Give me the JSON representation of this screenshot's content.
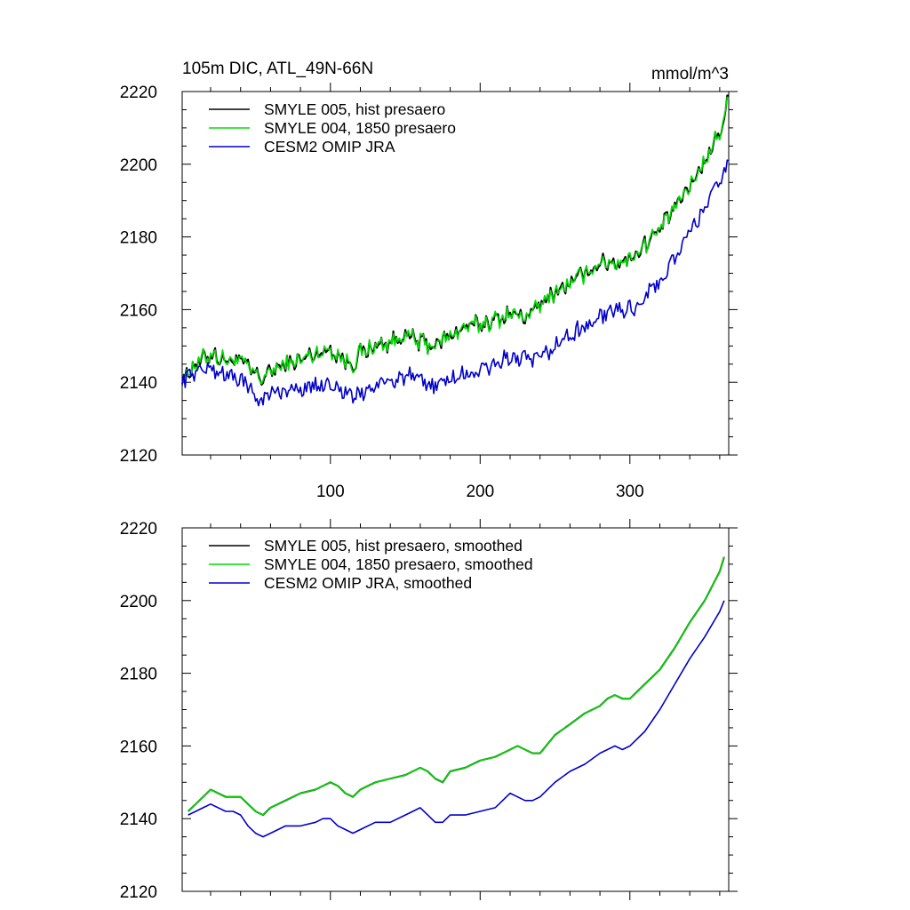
{
  "chart_data": [
    {
      "type": "line",
      "title": "105m DIC, ATL_49N-66N",
      "units": "mmol/m^3",
      "xlabel": "",
      "ylabel": "",
      "xlim": [
        1,
        366
      ],
      "ylim": [
        2120,
        2220
      ],
      "xticks": [
        100,
        200,
        300
      ],
      "xtick_labels": [
        "100",
        "200",
        "300"
      ],
      "yticks": [
        2120,
        2140,
        2160,
        2180,
        2200,
        2220
      ],
      "ytick_labels": [
        "2120",
        "2140",
        "2160",
        "2180",
        "2200",
        "2220"
      ],
      "legend_position": "top-left",
      "noise": true,
      "series": [
        {
          "name": "SMYLE 005, hist presaero",
          "color": "#000000",
          "x": [
            1,
            10,
            20,
            30,
            40,
            50,
            55,
            60,
            70,
            80,
            90,
            100,
            110,
            115,
            120,
            130,
            140,
            150,
            160,
            170,
            180,
            190,
            200,
            210,
            220,
            230,
            240,
            250,
            260,
            270,
            280,
            290,
            300,
            310,
            320,
            330,
            340,
            350,
            360,
            363,
            366
          ],
          "y": [
            2141,
            2145,
            2148,
            2146,
            2146,
            2142,
            2141,
            2143,
            2145,
            2146,
            2148,
            2149,
            2146,
            2145,
            2148,
            2150,
            2151,
            2153,
            2151,
            2150,
            2153,
            2155,
            2156,
            2157,
            2159,
            2158,
            2161,
            2165,
            2167,
            2170,
            2173,
            2173,
            2174,
            2178,
            2182,
            2188,
            2194,
            2201,
            2209,
            2213,
            2218
          ]
        },
        {
          "name": "SMYLE 004, 1850 presaero",
          "color": "#00dd00",
          "x": [
            1,
            10,
            20,
            30,
            40,
            50,
            55,
            60,
            70,
            80,
            90,
            100,
            110,
            115,
            120,
            130,
            140,
            150,
            160,
            170,
            180,
            190,
            200,
            210,
            220,
            230,
            240,
            250,
            260,
            270,
            280,
            290,
            300,
            310,
            320,
            330,
            340,
            350,
            360,
            363,
            366
          ],
          "y": [
            2141,
            2145,
            2148,
            2146,
            2146,
            2142,
            2141,
            2143,
            2145,
            2146,
            2148,
            2149,
            2146,
            2145,
            2148,
            2150,
            2151,
            2153,
            2151,
            2150,
            2153,
            2155,
            2156,
            2157,
            2159,
            2158,
            2161,
            2165,
            2167,
            2170,
            2173,
            2173,
            2174,
            2178,
            2182,
            2188,
            2194,
            2201,
            2209,
            2213,
            2218
          ]
        },
        {
          "name": "CESM2 OMIP JRA",
          "color": "#0000cc",
          "x": [
            1,
            10,
            20,
            30,
            40,
            50,
            55,
            60,
            70,
            80,
            90,
            100,
            110,
            115,
            120,
            130,
            140,
            150,
            160,
            170,
            180,
            190,
            200,
            210,
            220,
            230,
            240,
            250,
            260,
            270,
            280,
            290,
            300,
            310,
            320,
            330,
            340,
            350,
            360,
            363,
            366
          ],
          "y": [
            2141,
            2143,
            2144,
            2142,
            2141,
            2136,
            2135,
            2137,
            2138,
            2138,
            2139,
            2140,
            2137,
            2136,
            2137,
            2139,
            2140,
            2142,
            2140,
            2139,
            2141,
            2142,
            2143,
            2145,
            2147,
            2146,
            2146,
            2150,
            2153,
            2155,
            2158,
            2160,
            2160,
            2163,
            2168,
            2174,
            2181,
            2188,
            2195,
            2198,
            2201
          ]
        }
      ]
    },
    {
      "type": "line",
      "title": "",
      "units": "",
      "xlabel": "",
      "ylabel": "",
      "xlim": [
        1,
        366
      ],
      "ylim": [
        2120,
        2220
      ],
      "xticks": [
        100,
        200,
        300
      ],
      "xtick_labels": [],
      "yticks": [
        2120,
        2140,
        2160,
        2180,
        2200,
        2220
      ],
      "ytick_labels": [
        "2120",
        "2140",
        "2160",
        "2180",
        "2200",
        "2220"
      ],
      "legend_position": "top-left",
      "noise": false,
      "series": [
        {
          "name": "SMYLE 005, hist presaero, smoothed",
          "color": "#000000",
          "x": [
            5,
            10,
            15,
            20,
            30,
            35,
            40,
            45,
            50,
            55,
            60,
            70,
            80,
            90,
            95,
            100,
            105,
            110,
            115,
            120,
            130,
            140,
            150,
            155,
            160,
            165,
            170,
            175,
            180,
            190,
            200,
            210,
            215,
            220,
            225,
            230,
            235,
            240,
            250,
            260,
            270,
            280,
            285,
            290,
            295,
            300,
            310,
            320,
            330,
            340,
            350,
            360,
            363
          ],
          "y": [
            2142,
            2144,
            2146,
            2148,
            2146,
            2146,
            2146,
            2144,
            2142,
            2141,
            2143,
            2145,
            2147,
            2148,
            2149,
            2150,
            2149,
            2147,
            2146,
            2148,
            2150,
            2151,
            2152,
            2153,
            2154,
            2153,
            2151,
            2150,
            2153,
            2154,
            2156,
            2157,
            2158,
            2159,
            2160,
            2159,
            2158,
            2158,
            2163,
            2166,
            2169,
            2171,
            2173,
            2174,
            2173,
            2173,
            2177,
            2181,
            2187,
            2194,
            2200,
            2208,
            2212
          ]
        },
        {
          "name": "SMYLE 004, 1850 presaero, smoothed",
          "color": "#00dd00",
          "x": [
            5,
            10,
            15,
            20,
            30,
            35,
            40,
            45,
            50,
            55,
            60,
            70,
            80,
            90,
            95,
            100,
            105,
            110,
            115,
            120,
            130,
            140,
            150,
            155,
            160,
            165,
            170,
            175,
            180,
            190,
            200,
            210,
            215,
            220,
            225,
            230,
            235,
            240,
            250,
            260,
            270,
            280,
            285,
            290,
            295,
            300,
            310,
            320,
            330,
            340,
            350,
            360,
            363
          ],
          "y": [
            2142,
            2144,
            2146,
            2148,
            2146,
            2146,
            2146,
            2144,
            2142,
            2141,
            2143,
            2145,
            2147,
            2148,
            2149,
            2150,
            2149,
            2147,
            2146,
            2148,
            2150,
            2151,
            2152,
            2153,
            2154,
            2153,
            2151,
            2150,
            2153,
            2154,
            2156,
            2157,
            2158,
            2159,
            2160,
            2159,
            2158,
            2158,
            2163,
            2166,
            2169,
            2171,
            2173,
            2174,
            2173,
            2173,
            2177,
            2181,
            2187,
            2194,
            2200,
            2208,
            2212
          ]
        },
        {
          "name": "CESM2 OMIP JRA, smoothed",
          "color": "#0000cc",
          "x": [
            5,
            10,
            15,
            20,
            30,
            35,
            40,
            45,
            50,
            55,
            60,
            70,
            80,
            90,
            95,
            100,
            105,
            110,
            115,
            120,
            130,
            140,
            150,
            155,
            160,
            165,
            170,
            175,
            180,
            190,
            200,
            210,
            215,
            220,
            225,
            230,
            235,
            240,
            250,
            260,
            270,
            280,
            285,
            290,
            295,
            300,
            310,
            320,
            330,
            340,
            350,
            360,
            363
          ],
          "y": [
            2141,
            2142,
            2143,
            2144,
            2142,
            2142,
            2141,
            2138,
            2136,
            2135,
            2136,
            2138,
            2138,
            2139,
            2140,
            2140,
            2138,
            2137,
            2136,
            2137,
            2139,
            2139,
            2141,
            2142,
            2143,
            2141,
            2139,
            2139,
            2141,
            2141,
            2142,
            2143,
            2145,
            2147,
            2146,
            2145,
            2145,
            2146,
            2150,
            2153,
            2155,
            2158,
            2159,
            2160,
            2159,
            2160,
            2164,
            2170,
            2177,
            2184,
            2190,
            2197,
            2200
          ]
        }
      ]
    }
  ]
}
